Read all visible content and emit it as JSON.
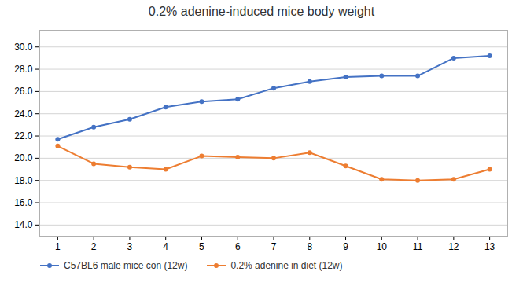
{
  "chart_data": {
    "type": "line",
    "title": "0.2% adenine-induced mice body weight",
    "x": [
      1,
      2,
      3,
      4,
      5,
      6,
      7,
      8,
      9,
      10,
      11,
      12,
      13
    ],
    "series": [
      {
        "name": "C57BL6 male mice con (12w)",
        "color": "#4472C4",
        "marker": "o",
        "values": [
          21.7,
          22.8,
          23.5,
          24.6,
          25.1,
          25.3,
          26.3,
          26.9,
          27.3,
          27.4,
          27.4,
          29.0,
          29.2
        ]
      },
      {
        "name": "0.2% adenine in diet (12w)",
        "color": "#ED7D31",
        "marker": "o",
        "values": [
          21.1,
          19.5,
          19.2,
          19.0,
          20.2,
          20.1,
          20.0,
          20.5,
          19.3,
          18.1,
          18.0,
          18.1,
          19.0
        ]
      }
    ],
    "xlim": [
      0.5,
      13.5
    ],
    "xticks": [
      1,
      2,
      3,
      4,
      5,
      6,
      7,
      8,
      9,
      10,
      11,
      12,
      13
    ],
    "ylim": [
      13.0,
      31.5
    ],
    "yticks": [
      {
        "value": 14.0,
        "label": "14.0"
      },
      {
        "value": 16.0,
        "label": "16.0"
      },
      {
        "value": 18.0,
        "label": "18.0"
      },
      {
        "value": 20.0,
        "label": "20.0"
      },
      {
        "value": 22.0,
        "label": "22.0"
      },
      {
        "value": 24.0,
        "label": "24.0"
      },
      {
        "value": 26.0,
        "label": "26.0"
      },
      {
        "value": 28.0,
        "label": "28.0"
      },
      {
        "value": 30.0,
        "label": "30.0"
      }
    ],
    "grid": true,
    "legend": "bottom"
  }
}
